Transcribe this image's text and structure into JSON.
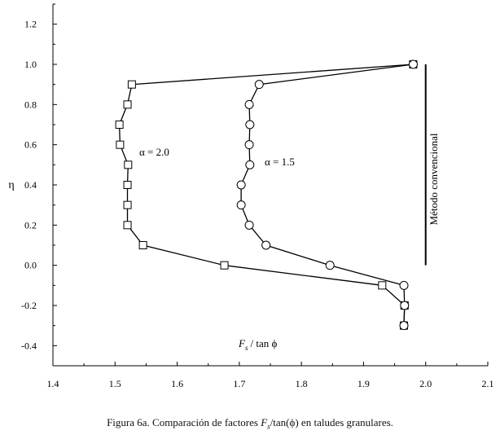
{
  "chart_data": {
    "type": "line",
    "xlabel_var": "F",
    "xlabel_sub": "s",
    "xlabel_rest": "/ tan ϕ",
    "ylabel": "η",
    "xlim": [
      1.4,
      2.1
    ],
    "ylim": [
      -0.5,
      1.3
    ],
    "x_ticks": [
      "1.4",
      "1.5",
      "1.6",
      "1.7",
      "1.8",
      "1.9",
      "2.0",
      "2.1"
    ],
    "y_ticks": [
      "1.2",
      "1.0",
      "0.8",
      "0.6",
      "0.4",
      "0.2",
      "0.0",
      "-0.2",
      "-0.4"
    ],
    "grid": false,
    "series": [
      {
        "name": "α = 2.0",
        "marker": "square",
        "points": [
          {
            "x": 1.98,
            "y": 1.0
          },
          {
            "x": 1.527,
            "y": 0.9
          },
          {
            "x": 1.52,
            "y": 0.8
          },
          {
            "x": 1.507,
            "y": 0.7
          },
          {
            "x": 1.508,
            "y": 0.6
          },
          {
            "x": 1.521,
            "y": 0.5
          },
          {
            "x": 1.52,
            "y": 0.4
          },
          {
            "x": 1.52,
            "y": 0.3
          },
          {
            "x": 1.52,
            "y": 0.2
          },
          {
            "x": 1.545,
            "y": 0.1
          },
          {
            "x": 1.676,
            "y": 0.0
          },
          {
            "x": 1.93,
            "y": -0.1
          },
          {
            "x": 1.966,
            "y": -0.2
          },
          {
            "x": 1.965,
            "y": -0.3
          }
        ]
      },
      {
        "name": "α = 1.5",
        "marker": "circle",
        "points": [
          {
            "x": 1.98,
            "y": 1.0
          },
          {
            "x": 1.732,
            "y": 0.9
          },
          {
            "x": 1.716,
            "y": 0.8
          },
          {
            "x": 1.717,
            "y": 0.7
          },
          {
            "x": 1.716,
            "y": 0.6
          },
          {
            "x": 1.717,
            "y": 0.5
          },
          {
            "x": 1.703,
            "y": 0.4
          },
          {
            "x": 1.703,
            "y": 0.3
          },
          {
            "x": 1.716,
            "y": 0.2
          },
          {
            "x": 1.743,
            "y": 0.1
          },
          {
            "x": 1.846,
            "y": 0.0
          },
          {
            "x": 1.965,
            "y": -0.1
          },
          {
            "x": 1.966,
            "y": -0.2
          },
          {
            "x": 1.965,
            "y": -0.3
          }
        ]
      }
    ],
    "annotations": {
      "alpha20": "α = 2.0",
      "alpha15": "α = 1.5",
      "metodo": "Método convencional"
    },
    "metodo_bar": {
      "x": 2.0,
      "y_from": 0.0,
      "y_to": 1.0
    },
    "colors": {
      "line": "#000000",
      "marker_fill": "#ffffff"
    }
  },
  "caption": {
    "prefix": "Figura 6a. Comparación de factores ",
    "var": "F",
    "sub": "s",
    "middle": "/tan(ϕ) en taludes granulares."
  }
}
